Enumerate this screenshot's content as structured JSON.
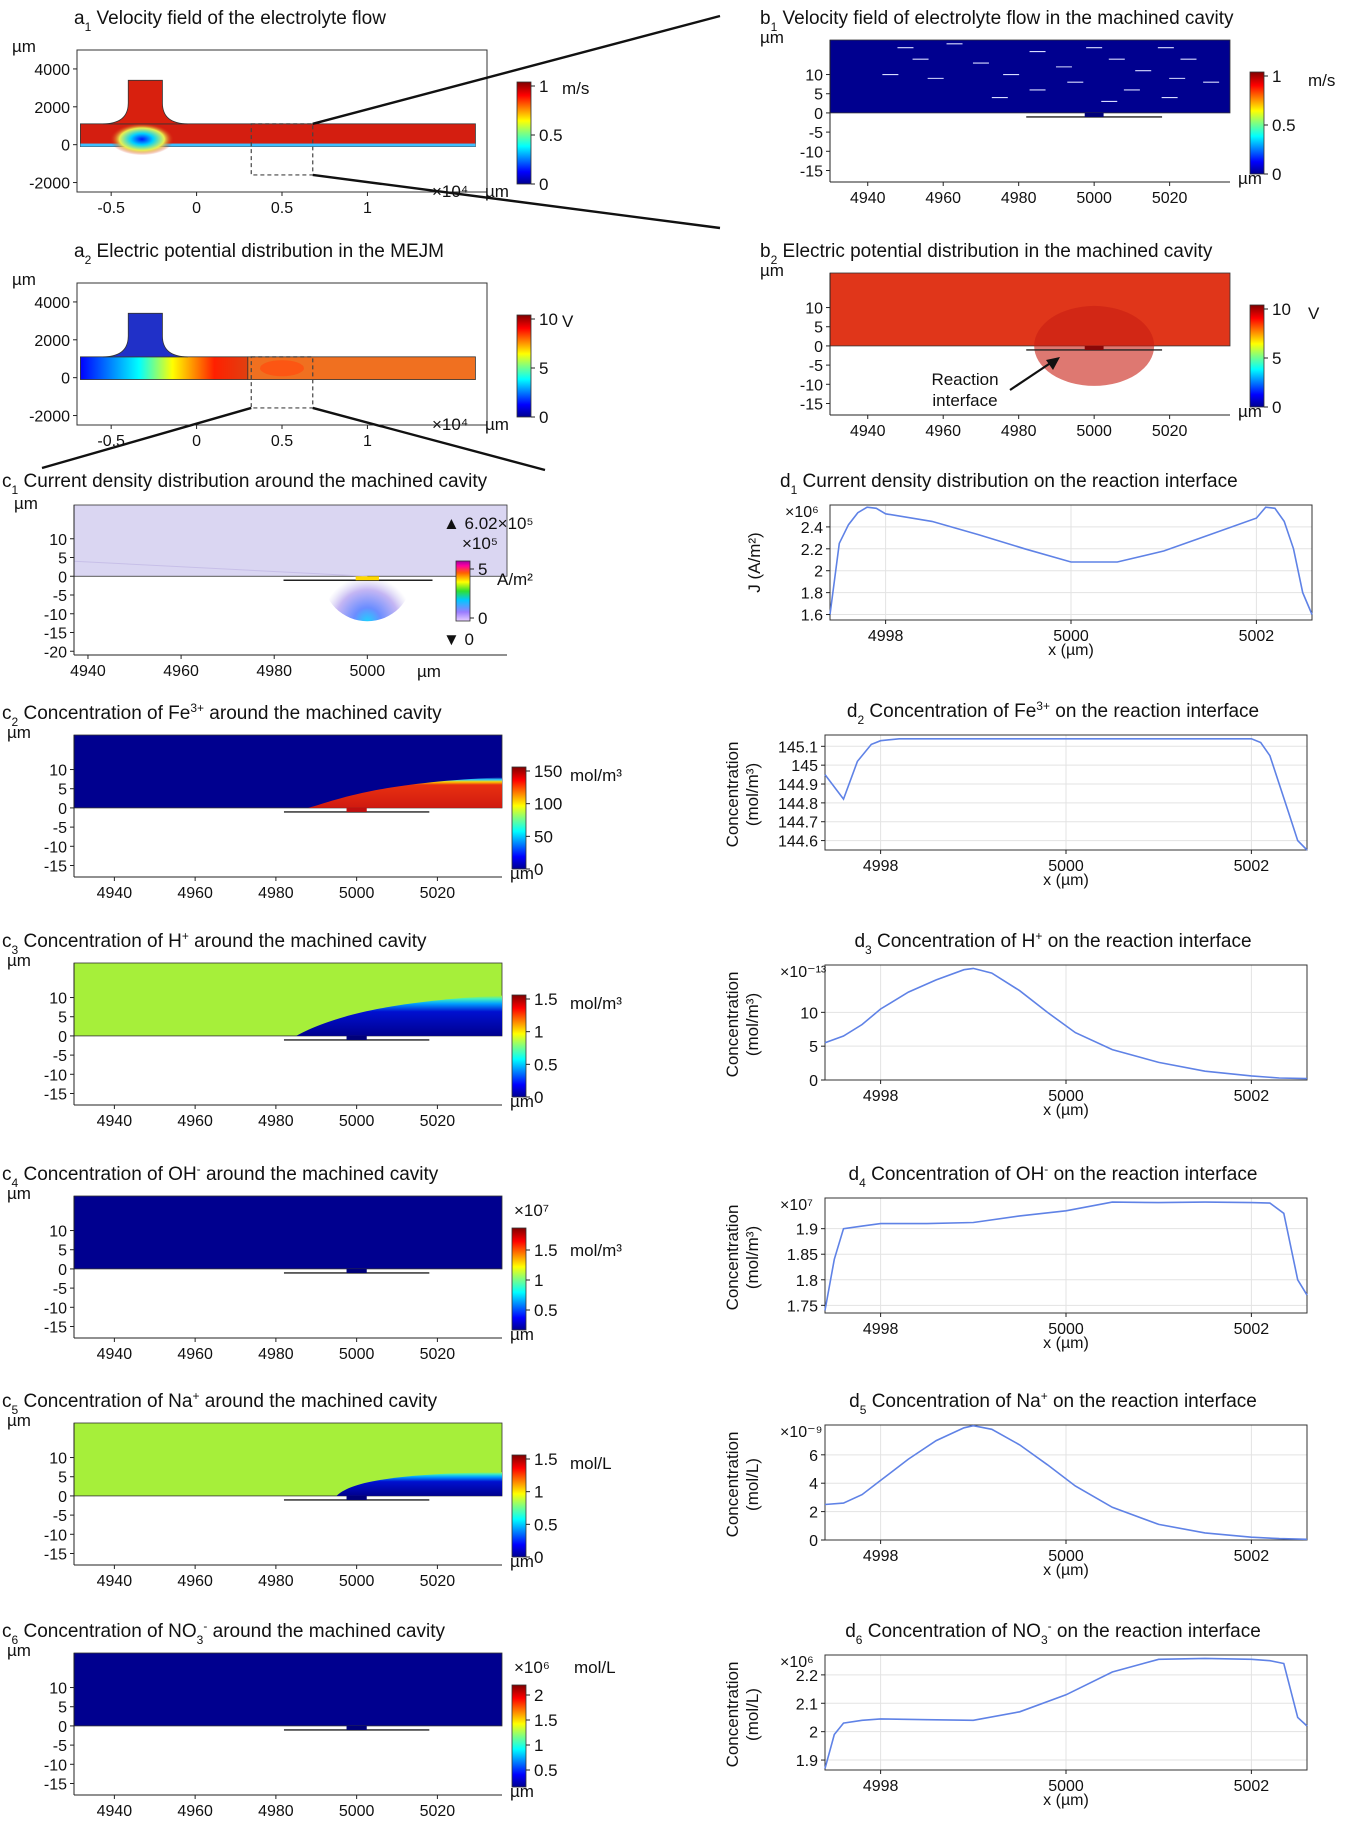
{
  "figure": {
    "units": {
      "um": "µm",
      "x104": "×10⁴",
      "xlab": "x (µm)"
    },
    "colors": {
      "jet_blue": "#00008f",
      "jet_green_yellow": "#a6ef3a",
      "jet_red": "#c81e12",
      "curve": "#5f82e6"
    },
    "panels": {
      "a1": {
        "title_letter": "a",
        "title_sub": "1",
        "title": " Velocity field of the electrolyte flow",
        "colorbar": {
          "unit": "m/s",
          "ticks": [
            "1",
            "0.5",
            "0"
          ]
        }
      },
      "a2": {
        "title_letter": "a",
        "title_sub": "2",
        "title": " Electric potential distribution in the MEJM",
        "colorbar": {
          "unit": "V",
          "ticks": [
            "10",
            "5",
            "0"
          ]
        }
      },
      "b1": {
        "title_letter": "b",
        "title_sub": "1",
        "title": " Velocity field of electrolyte flow in the machined cavity",
        "colorbar": {
          "unit": "m/s",
          "ticks": [
            "1",
            "0.5",
            "0"
          ]
        }
      },
      "b2": {
        "title_letter": "b",
        "title_sub": "2",
        "title": " Electric potential distribution in the machined cavity",
        "colorbar": {
          "unit": "V",
          "ticks": [
            "10",
            "5",
            "0"
          ]
        },
        "annotation": [
          "Reaction",
          "interface"
        ]
      },
      "c1": {
        "title_letter": "c",
        "title_sub": "1",
        "title": " Current density distribution around the machined cavity",
        "colorbar": {
          "unit": "A/m²",
          "max_label": "▲ 6.02×10⁵",
          "scale": "×10⁵",
          "ticks": [
            "5",
            "0"
          ],
          "min_label": "▼ 0"
        }
      },
      "c2": {
        "title_letter": "c",
        "title_sub": "2",
        "title_pre": " Concentration of Fe",
        "title_ion_sup": "3+",
        "title_post": " around the machined cavity",
        "colorbar": {
          "unit": "mol/m³",
          "ticks": [
            "150",
            "100",
            "50",
            "0"
          ]
        }
      },
      "c3": {
        "title_letter": "c",
        "title_sub": "3",
        "title_pre": " Concentration of H",
        "title_ion_sup": "+",
        "title_post": " around the machined cavity",
        "colorbar": {
          "unit": "mol/m³",
          "ticks": [
            "1.5",
            "1",
            "0.5",
            "0"
          ]
        }
      },
      "c4": {
        "title_letter": "c",
        "title_sub": "4",
        "title_pre": " Concentration of OH",
        "title_ion_sup": "-",
        "title_post": " around the machined cavity",
        "colorbar": {
          "unit": "mol/m³",
          "scale": "×10⁷",
          "ticks": [
            "1.5",
            "1",
            "0.5"
          ]
        }
      },
      "c5": {
        "title_letter": "c",
        "title_sub": "5",
        "title_pre": " Concentration of Na",
        "title_ion_sup": "+",
        "title_post": " around the machined cavity",
        "colorbar": {
          "unit": "mol/L",
          "ticks": [
            "1.5",
            "1",
            "0.5",
            "0"
          ]
        }
      },
      "c6": {
        "title_letter": "c",
        "title_sub": "6",
        "title_pre": " Concentration of NO",
        "title_ion_sub": "3",
        "title_ion_sup": "-",
        "title_post": " around the machined cavity",
        "colorbar": {
          "unit": "mol/L",
          "scale": "×10⁶",
          "ticks": [
            "2",
            "1.5",
            "1",
            "0.5"
          ]
        }
      },
      "d1": {
        "title_letter": "d",
        "title_sub": "1",
        "title": " Current density distribution on the reaction interface",
        "ylabel": "J (A/m²)",
        "scale": "×10⁶"
      },
      "d2": {
        "title_letter": "d",
        "title_sub": "2",
        "title_pre": " Concentration of Fe",
        "title_ion_sup": "3+",
        "title_post": " on the reaction interface",
        "ylabel": [
          "Concentration",
          "(mol/m³)"
        ]
      },
      "d3": {
        "title_letter": "d",
        "title_sub": "3",
        "title_pre": " Concentration of H",
        "title_ion_sup": "+",
        "title_post": " on the reaction interface",
        "ylabel": [
          "Concentration",
          "(mol/m³)"
        ],
        "scale": "×10⁻¹³"
      },
      "d4": {
        "title_letter": "d",
        "title_sub": "4",
        "title_pre": " Concentration of OH",
        "title_ion_sup": "-",
        "title_post": " on the reaction interface",
        "ylabel": [
          "Concentration",
          "(mol/m³)"
        ],
        "scale": "×10⁷"
      },
      "d5": {
        "title_letter": "d",
        "title_sub": "5",
        "title_pre": " Concentration of Na",
        "title_ion_sup": "+",
        "title_post": " on the reaction interface",
        "ylabel": [
          "Concentration",
          "(mol/L)"
        ],
        "scale": "×10⁻⁹"
      },
      "d6": {
        "title_letter": "d",
        "title_sub": "6",
        "title_pre": " Concentration of NO",
        "title_ion_sub": "3",
        "title_ion_sup": "-",
        "title_post": " on the reaction interface",
        "ylabel": [
          "Concentration",
          "(mol/L)"
        ],
        "scale": "×10⁶"
      }
    }
  },
  "chart_data": [
    {
      "id": "a1",
      "type": "heatmap",
      "title": "Velocity field of the electrolyte flow",
      "xlim": [
        -0.7,
        1.7
      ],
      "xticks": [
        "-0.5",
        "0",
        "0.5",
        "1"
      ],
      "x_scale": "×10⁴",
      "ylim": [
        -2500,
        5000
      ],
      "yticks": [
        "4000",
        "2000",
        "0",
        "-2000"
      ],
      "colorbar": {
        "unit": "m/s",
        "range": [
          0,
          1.1
        ]
      }
    },
    {
      "id": "a2",
      "type": "heatmap",
      "title": "Electric potential distribution in the MEJM",
      "xlim": [
        -0.7,
        1.7
      ],
      "xticks": [
        "-0.5",
        "0",
        "0.5",
        "1"
      ],
      "x_scale": "×10⁴",
      "ylim": [
        -2500,
        5000
      ],
      "yticks": [
        "4000",
        "2000",
        "0",
        "-2000"
      ],
      "colorbar": {
        "unit": "V",
        "range": [
          0,
          10
        ]
      }
    },
    {
      "id": "b1",
      "type": "heatmap",
      "title": "Velocity field of electrolyte flow in the machined cavity",
      "xlim": [
        4930,
        5036
      ],
      "xticks": [
        "4940",
        "4960",
        "4980",
        "5000",
        "5020"
      ],
      "ylim": [
        -18,
        19
      ],
      "yticks": [
        "10",
        "5",
        "0",
        "-5",
        "-10",
        "-15"
      ],
      "colorbar": {
        "unit": "m/s",
        "range": [
          0,
          1.1
        ]
      }
    },
    {
      "id": "b2",
      "type": "heatmap",
      "title": "Electric potential distribution in the machined cavity",
      "xlim": [
        4930,
        5036
      ],
      "xticks": [
        "4940",
        "4960",
        "4980",
        "5000",
        "5020"
      ],
      "ylim": [
        -18,
        19
      ],
      "yticks": [
        "10",
        "5",
        "0",
        "-5",
        "-10",
        "-15"
      ],
      "colorbar": {
        "unit": "V",
        "range": [
          0,
          10
        ]
      }
    },
    {
      "id": "c1",
      "type": "heatmap",
      "title": "Current density distribution around the machined cavity",
      "xlim": [
        4937,
        5030
      ],
      "xticks": [
        "4940",
        "4960",
        "4980",
        "5000"
      ],
      "ylim": [
        -21,
        19
      ],
      "yticks": [
        "10",
        "5",
        "0",
        "-5",
        "-10",
        "-15",
        "-20"
      ],
      "colorbar": {
        "unit": "A/m²",
        "max": 602000,
        "min": 0
      }
    },
    {
      "id": "c2",
      "type": "heatmap",
      "title": "Concentration of Fe3+ around the machined cavity",
      "xlim": [
        4930,
        5036
      ],
      "xticks": [
        "4940",
        "4960",
        "4980",
        "5000",
        "5020"
      ],
      "ylim": [
        -18,
        19
      ],
      "yticks": [
        "10",
        "5",
        "0",
        "-5",
        "-10",
        "-15"
      ],
      "colorbar": {
        "unit": "mol/m³",
        "range": [
          0,
          160
        ]
      }
    },
    {
      "id": "c3",
      "type": "heatmap",
      "title": "Concentration of H+ around the machined cavity",
      "xlim": [
        4930,
        5036
      ],
      "xticks": [
        "4940",
        "4960",
        "4980",
        "5000",
        "5020"
      ],
      "ylim": [
        -18,
        19
      ],
      "yticks": [
        "10",
        "5",
        "0",
        "-5",
        "-10",
        "-15"
      ],
      "colorbar": {
        "unit": "mol/m³",
        "range": [
          0,
          1.7
        ]
      }
    },
    {
      "id": "c4",
      "type": "heatmap",
      "title": "Concentration of OH- around the machined cavity",
      "xlim": [
        4930,
        5036
      ],
      "xticks": [
        "4940",
        "4960",
        "4980",
        "5000",
        "5020"
      ],
      "ylim": [
        -18,
        19
      ],
      "yticks": [
        "10",
        "5",
        "0",
        "-5",
        "-10",
        "-15"
      ],
      "colorbar": {
        "unit": "mol/m³",
        "range": [
          0,
          19000000
        ]
      }
    },
    {
      "id": "c5",
      "type": "heatmap",
      "title": "Concentration of Na+ around the machined cavity",
      "xlim": [
        4930,
        5036
      ],
      "xticks": [
        "4940",
        "4960",
        "4980",
        "5000",
        "5020"
      ],
      "ylim": [
        -18,
        19
      ],
      "yticks": [
        "10",
        "5",
        "0",
        "-5",
        "-10",
        "-15"
      ],
      "colorbar": {
        "unit": "mol/L",
        "range": [
          0,
          1.8
        ]
      }
    },
    {
      "id": "c6",
      "type": "heatmap",
      "title": "Concentration of NO3- around the machined cavity",
      "xlim": [
        4930,
        5036
      ],
      "xticks": [
        "4940",
        "4960",
        "4980",
        "5000",
        "5020"
      ],
      "ylim": [
        -18,
        19
      ],
      "yticks": [
        "10",
        "5",
        "0",
        "-5",
        "-10",
        "-15"
      ],
      "colorbar": {
        "unit": "mol/L",
        "range": [
          0,
          2300000
        ]
      }
    },
    {
      "id": "d1",
      "type": "line",
      "title": "Current density distribution on the reaction interface",
      "xlabel": "x (µm)",
      "ylabel": "J (A/m²)",
      "scale": "×10⁶",
      "xlim": [
        4997.4,
        5002.6
      ],
      "ylim": [
        1.55,
        2.6
      ],
      "xticks": [
        4998,
        5000,
        5002
      ],
      "yticks": [
        1.6,
        1.8,
        2,
        2.2,
        2.4
      ],
      "x": [
        4997.4,
        4997.5,
        4997.6,
        4997.7,
        4997.8,
        4997.9,
        4998,
        4998.5,
        4999,
        4999.5,
        5000,
        5000.5,
        5001,
        5001.5,
        5002,
        5002.1,
        5002.2,
        5002.3,
        5002.4,
        5002.5,
        5002.6
      ],
      "y": [
        1.6,
        2.25,
        2.42,
        2.53,
        2.58,
        2.57,
        2.52,
        2.45,
        2.33,
        2.2,
        2.08,
        2.08,
        2.18,
        2.33,
        2.48,
        2.58,
        2.57,
        2.45,
        2.2,
        1.8,
        1.6
      ]
    },
    {
      "id": "d2",
      "type": "line",
      "title": "Concentration of Fe3+ on the reaction interface",
      "xlabel": "x (µm)",
      "ylabel": "Concentration (mol/m³)",
      "xlim": [
        4997.4,
        5002.6
      ],
      "ylim": [
        144.55,
        145.16
      ],
      "xticks": [
        4998,
        5000,
        5002
      ],
      "yticks": [
        144.6,
        144.7,
        144.8,
        144.9,
        145,
        145.1
      ],
      "x": [
        4997.4,
        4997.6,
        4997.75,
        4997.9,
        4998,
        4998.2,
        4998.5,
        4999,
        4999.5,
        5000,
        5000.5,
        5001,
        5001.5,
        5002,
        5002.1,
        5002.2,
        5002.3,
        5002.4,
        5002.5,
        5002.6
      ],
      "y": [
        144.95,
        144.82,
        145.02,
        145.11,
        145.13,
        145.14,
        145.14,
        145.14,
        145.14,
        145.14,
        145.14,
        145.14,
        145.14,
        145.14,
        145.12,
        145.05,
        144.9,
        144.75,
        144.6,
        144.55
      ]
    },
    {
      "id": "d3",
      "type": "line",
      "title": "Concentration of H+ on the reaction interface",
      "xlabel": "x (µm)",
      "ylabel": "Concentration (mol/m³)",
      "scale": "×10⁻¹³",
      "xlim": [
        4997.4,
        5002.6
      ],
      "ylim": [
        0,
        17
      ],
      "xticks": [
        4998,
        5000,
        5002
      ],
      "yticks": [
        0,
        5,
        10
      ],
      "x": [
        4997.4,
        4997.6,
        4997.8,
        4998,
        4998.3,
        4998.6,
        4998.9,
        4999,
        4999.2,
        4999.5,
        4999.8,
        5000.1,
        5000.5,
        5001,
        5001.5,
        5002,
        5002.3,
        5002.6
      ],
      "y": [
        5.5,
        6.5,
        8.2,
        10.5,
        13,
        14.8,
        16.3,
        16.5,
        15.8,
        13.2,
        10,
        7,
        4.5,
        2.6,
        1.3,
        0.6,
        0.3,
        0.2
      ]
    },
    {
      "id": "d4",
      "type": "line",
      "title": "Concentration of OH- on the reaction interface",
      "xlabel": "x (µm)",
      "ylabel": "Concentration (mol/m³)",
      "scale": "×10⁷",
      "xlim": [
        4997.4,
        5002.6
      ],
      "ylim": [
        1.735,
        1.96
      ],
      "xticks": [
        4998,
        5000,
        5002
      ],
      "yticks": [
        1.75,
        1.8,
        1.85,
        1.9
      ],
      "x": [
        4997.4,
        4997.5,
        4997.6,
        4997.8,
        4998,
        4998.5,
        4999,
        4999.5,
        5000,
        5000.5,
        5001,
        5001.5,
        5002,
        5002.2,
        5002.35,
        5002.5,
        5002.6
      ],
      "y": [
        1.74,
        1.84,
        1.9,
        1.905,
        1.91,
        1.91,
        1.912,
        1.925,
        1.935,
        1.952,
        1.951,
        1.952,
        1.951,
        1.95,
        1.93,
        1.8,
        1.77
      ]
    },
    {
      "id": "d5",
      "type": "line",
      "title": "Concentration of Na+ on the reaction interface",
      "xlabel": "x (µm)",
      "ylabel": "Concentration (mol/L)",
      "scale": "×10⁻⁹",
      "xlim": [
        4997.4,
        5002.6
      ],
      "ylim": [
        0,
        8.1
      ],
      "xticks": [
        4998,
        5000,
        5002
      ],
      "yticks": [
        0,
        2,
        4,
        6
      ],
      "x": [
        4997.4,
        4997.6,
        4997.8,
        4998,
        4998.3,
        4998.6,
        4998.9,
        4999,
        4999.2,
        4999.5,
        4999.8,
        5000.1,
        5000.5,
        5001,
        5001.5,
        5002,
        5002.3,
        5002.6
      ],
      "y": [
        2.5,
        2.6,
        3.2,
        4.2,
        5.7,
        7,
        7.9,
        8.05,
        7.8,
        6.7,
        5.3,
        3.8,
        2.3,
        1.1,
        0.5,
        0.2,
        0.1,
        0.05
      ]
    },
    {
      "id": "d6",
      "type": "line",
      "title": "Concentration of NO3- on the reaction interface",
      "xlabel": "x (µm)",
      "ylabel": "Concentration (mol/L)",
      "scale": "×10⁶",
      "xlim": [
        4997.4,
        5002.6
      ],
      "ylim": [
        1.865,
        2.27
      ],
      "xticks": [
        4998,
        5000,
        5002
      ],
      "yticks": [
        1.9,
        2,
        2.1,
        2.2
      ],
      "x": [
        4997.4,
        4997.5,
        4997.6,
        4997.8,
        4998,
        4998.5,
        4999,
        4999.5,
        5000,
        5000.5,
        5001,
        5001.5,
        5002,
        5002.2,
        5002.35,
        5002.5,
        5002.6
      ],
      "y": [
        1.87,
        1.99,
        2.03,
        2.04,
        2.045,
        2.042,
        2.04,
        2.07,
        2.13,
        2.21,
        2.255,
        2.258,
        2.255,
        2.25,
        2.24,
        2.05,
        2.02
      ]
    }
  ]
}
